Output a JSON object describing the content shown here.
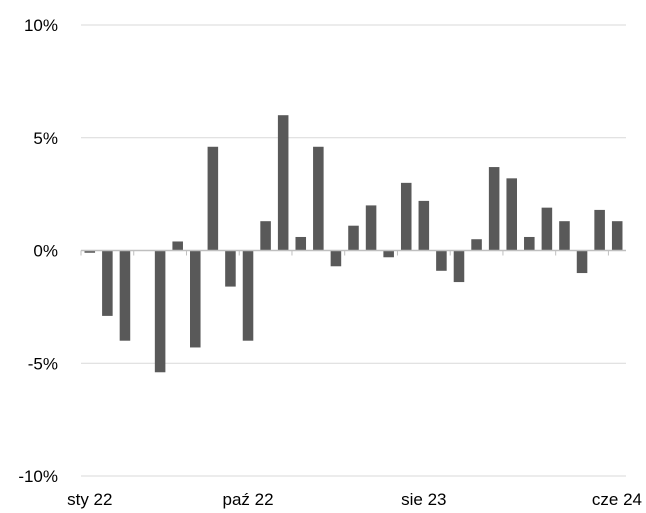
{
  "chart_data": {
    "type": "bar",
    "title": "",
    "xlabel": "",
    "ylabel": "",
    "ylim": [
      -10,
      10
    ],
    "y_ticks": [
      -10,
      -5,
      0,
      5,
      10
    ],
    "y_tick_labels": [
      "-10%",
      "-5%",
      "0%",
      "5%",
      "10%"
    ],
    "grid": true,
    "legend": "none",
    "x_tick_labels": [
      {
        "label": "sty 22",
        "index": 0
      },
      {
        "label": "paź 22",
        "index": 9
      },
      {
        "label": "sie 23",
        "index": 19
      },
      {
        "label": "cze 24",
        "index": 29
      }
    ],
    "series": [
      {
        "color": "#595959",
        "values": [
          -0.1,
          -2.9,
          -4.0,
          0.0,
          -5.4,
          0.4,
          -4.3,
          4.6,
          -1.6,
          -4.0,
          1.3,
          6.0,
          0.6,
          4.6,
          -0.7,
          1.1,
          2.0,
          -0.3,
          3.0,
          2.2,
          -0.9,
          -1.4,
          0.5,
          3.7,
          3.2,
          0.6,
          1.9,
          1.3,
          -1.0,
          1.8,
          1.3
        ]
      }
    ],
    "colors": {
      "bar": "#595959",
      "grid": "#d9d9d9",
      "axis": "#bfbfbf"
    }
  }
}
